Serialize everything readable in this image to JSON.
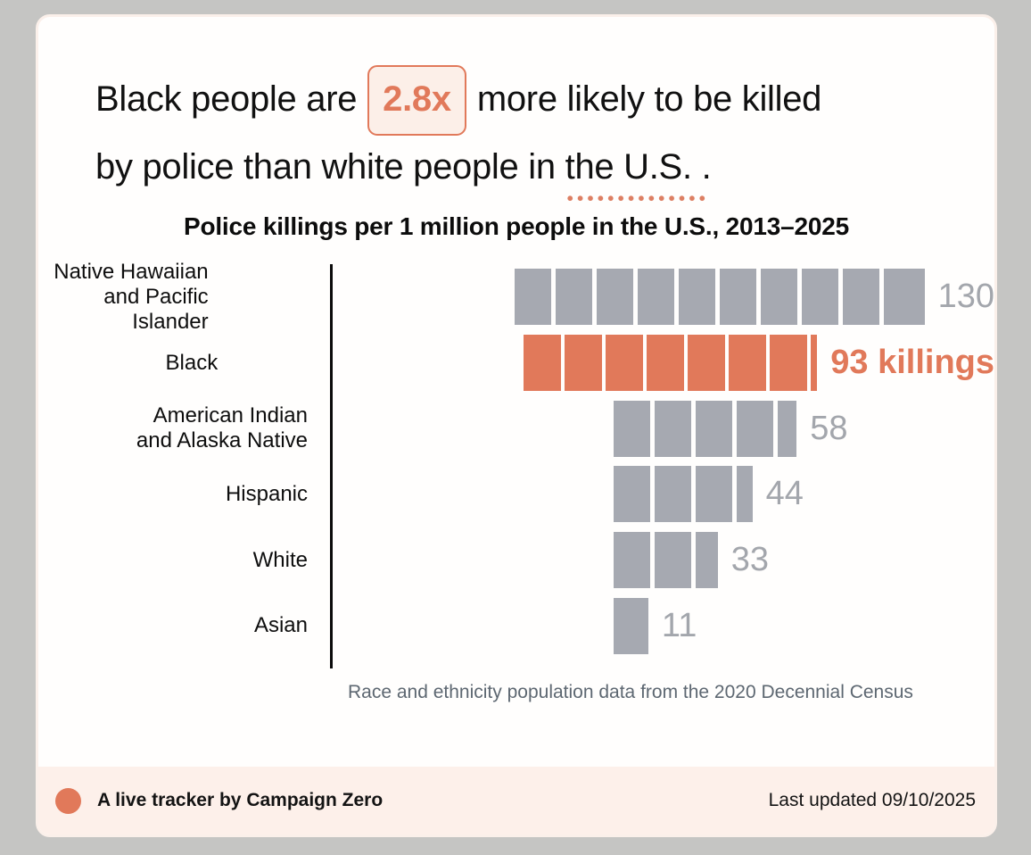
{
  "headline": {
    "line1_prefix": "Black people are",
    "multiplier": "2.8x",
    "line1_suffix": "more likely to be killed",
    "line2_prefix": "by police than white people in",
    "line2_underlined": "the U.S.",
    "line2_suffix": "."
  },
  "chart_data": {
    "type": "bar",
    "orientation": "horizontal",
    "title": "Police killings per 1 million people in the U.S., 2013–2025",
    "categories": [
      "Native Hawaiian and Pacific Islander",
      "Black",
      "American Indian and Alaska Native",
      "Hispanic",
      "White",
      "Asian"
    ],
    "values": [
      130,
      93,
      58,
      44,
      33,
      11
    ],
    "rows": [
      {
        "label_lines": [
          "Native Hawaiian",
          "and Pacific Islander"
        ],
        "value": 130,
        "display": "130",
        "highlight": false
      },
      {
        "label_lines": [
          "Black"
        ],
        "value": 93,
        "display": "93 killings",
        "highlight": true
      },
      {
        "label_lines": [
          "American Indian",
          "and Alaska Native"
        ],
        "value": 58,
        "display": "58",
        "highlight": false
      },
      {
        "label_lines": [
          "Hispanic"
        ],
        "value": 44,
        "display": "44",
        "highlight": false
      },
      {
        "label_lines": [
          "White"
        ],
        "value": 33,
        "display": "33",
        "highlight": false
      },
      {
        "label_lines": [
          "Asian"
        ],
        "value": 11,
        "display": "11",
        "highlight": false
      }
    ],
    "xlim": [
      0,
      130
    ],
    "segment_unit": 13,
    "grid": false,
    "legend": "none",
    "caption": "Race and ethnicity population data from the 2020 Decennial Census"
  },
  "footer": {
    "left_text": "A live tracker by Campaign Zero",
    "right_text": "Last updated 09/10/2025"
  },
  "colors": {
    "accent": "#e1795a",
    "bar-color": "#a6a9b1",
    "value-gray": "#a3a6ac",
    "chip-bg": "#fcefe8",
    "dot-color": "#dd7f63",
    "footer-bg": "#fdf0ea",
    "caption-gray": "#5d6771",
    "card-border": "#fbf0ea"
  }
}
